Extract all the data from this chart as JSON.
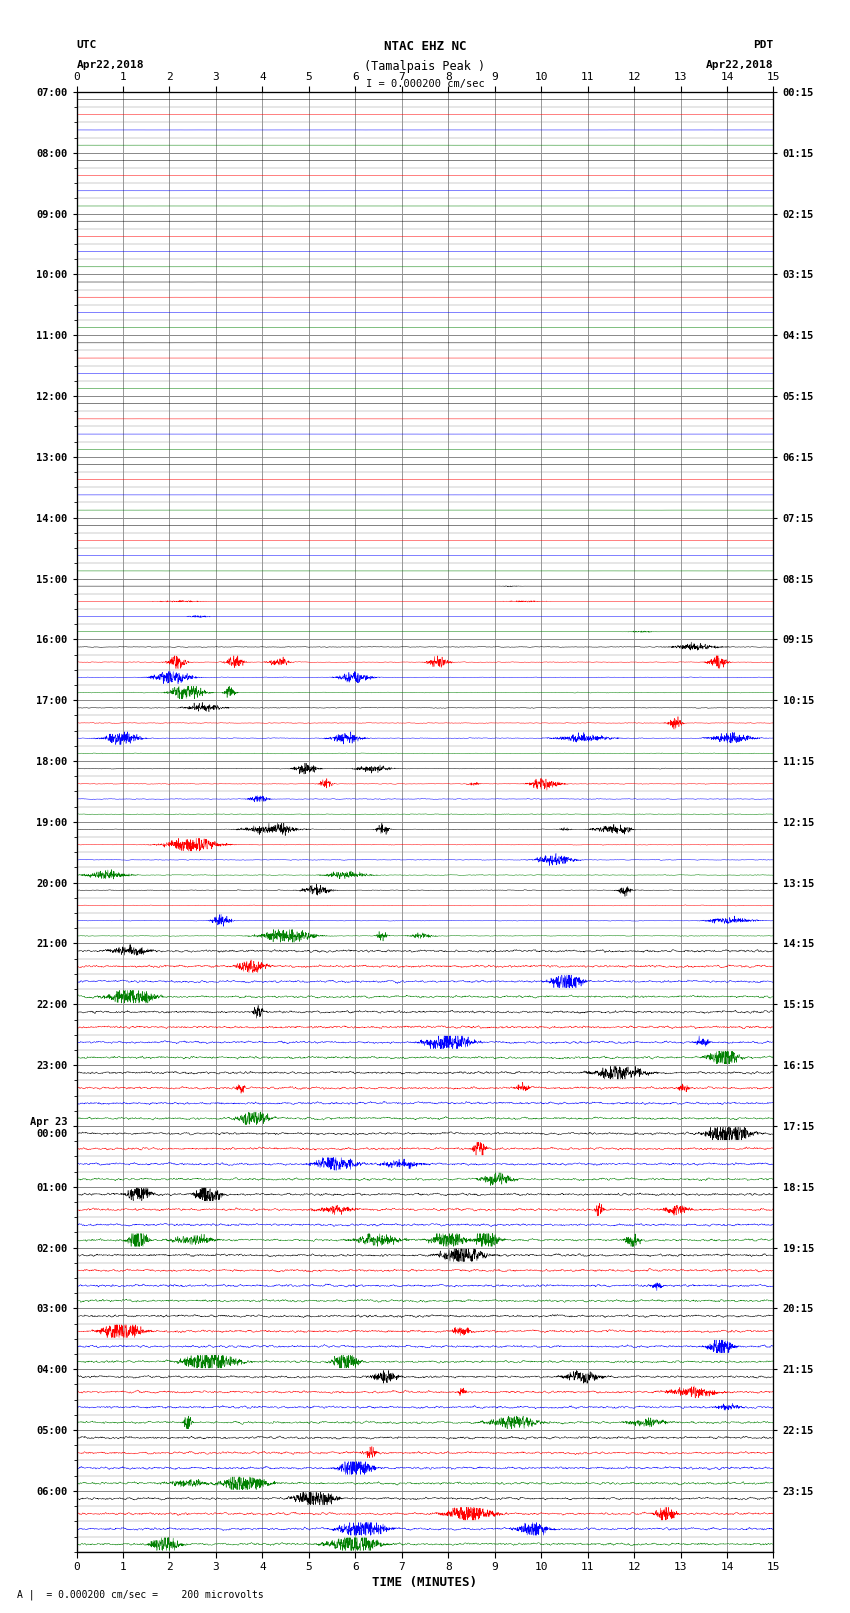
{
  "title_line1": "NTAC EHZ NC",
  "title_line2": "(Tamalpais Peak )",
  "title_line3": "I = 0.000200 cm/sec",
  "left_label_line1": "UTC",
  "left_label_line2": "Apr22,2018",
  "right_label_line1": "PDT",
  "right_label_line2": "Apr22,2018",
  "xlabel": "TIME (MINUTES)",
  "bottom_note": "A |  = 0.000200 cm/sec =    200 microvolts",
  "xmin": 0,
  "xmax": 15,
  "trace_colors": [
    "black",
    "red",
    "blue",
    "green"
  ],
  "background_color": "white",
  "grid_color": "#888888",
  "num_rows": 96,
  "figwidth": 8.5,
  "figheight": 16.13,
  "dpi": 100,
  "left_tick_hours": [
    7,
    8,
    9,
    10,
    11,
    12,
    13,
    14,
    15,
    16,
    17,
    18,
    19,
    20,
    21,
    22,
    23,
    0,
    1,
    2,
    3,
    4,
    5,
    6
  ],
  "right_tick_labels": [
    "00:15",
    "01:15",
    "02:15",
    "03:15",
    "04:15",
    "05:15",
    "06:15",
    "07:15",
    "08:15",
    "09:15",
    "10:15",
    "11:15",
    "12:15",
    "13:15",
    "14:15",
    "15:15",
    "16:15",
    "17:15",
    "18:15",
    "19:15",
    "20:15",
    "21:15",
    "22:15",
    "23:15"
  ]
}
